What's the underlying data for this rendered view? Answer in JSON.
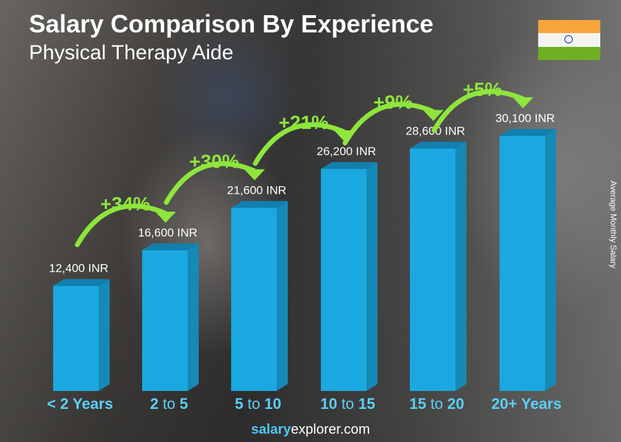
{
  "chart_data": {
    "type": "bar",
    "title": "Salary Comparison By Experience",
    "subtitle": "Physical Therapy Aide",
    "ylabel": "Average Monthly Salary",
    "categories": [
      {
        "pre": "< 2 Years",
        "num1": "",
        "mid": "",
        "num2": ""
      },
      {
        "pre": "",
        "num1": "2",
        "mid": " to ",
        "num2": "5"
      },
      {
        "pre": "",
        "num1": "5",
        "mid": " to ",
        "num2": "10"
      },
      {
        "pre": "",
        "num1": "10",
        "mid": " to ",
        "num2": "15"
      },
      {
        "pre": "",
        "num1": "15",
        "mid": " to ",
        "num2": "20"
      },
      {
        "pre": "20+ Years",
        "num1": "",
        "mid": "",
        "num2": ""
      }
    ],
    "values": [
      12400,
      16600,
      21600,
      26200,
      28600,
      30100
    ],
    "value_labels": [
      "12,400 INR",
      "16,600 INR",
      "21,600 INR",
      "26,200 INR",
      "28,600 INR",
      "30,100 INR"
    ],
    "changes": [
      "+34%",
      "+30%",
      "+21%",
      "+9%",
      "+5%"
    ],
    "ylim": [
      0,
      30100
    ],
    "colors": {
      "bar_front": "#1ba8e0",
      "bar_side": "#1589b8",
      "bar_top": "#127fae",
      "change": "#8ee63c",
      "category": "#5cd0f5"
    }
  },
  "country_flag": "india-flag-icon",
  "footer": {
    "bold": "salary",
    "rest": "explorer.com"
  }
}
